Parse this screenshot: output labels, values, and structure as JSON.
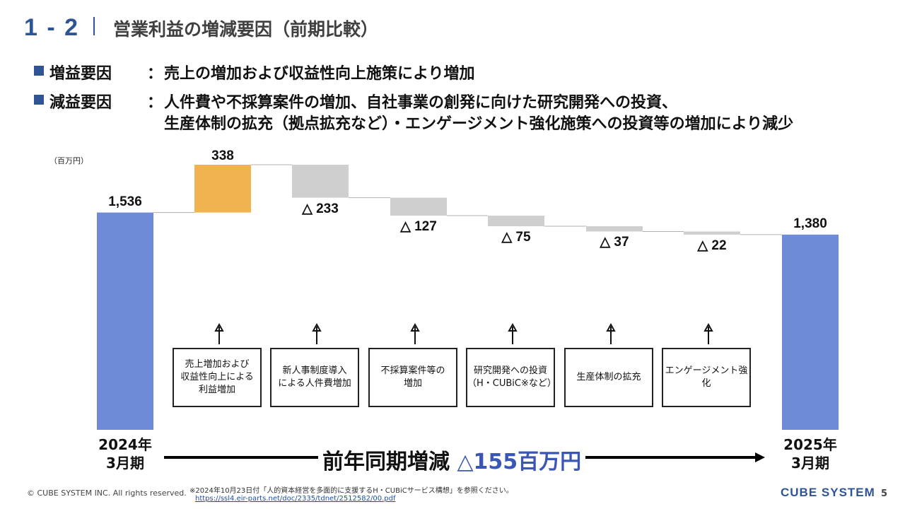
{
  "header": {
    "section_number": "1 - 2",
    "title": "営業利益の増減要因（前期比較）"
  },
  "bullets": [
    {
      "label": "増益要因",
      "separator": "：",
      "text": "売上の増加および収益性向上施策により増加"
    },
    {
      "label": "減益要因",
      "separator": "：",
      "text": "人件費や不採算案件の増加、自社事業の創発に向けた研究開発への投資、",
      "text2": "生産体制の拡充（拠点拡充など）・エンゲージメント強化施策への投資等の増加により減少"
    }
  ],
  "unit_label": "（百万円）",
  "chart_data": {
    "type": "bar",
    "subtype": "waterfall",
    "categories": [
      "2024年\n3月期",
      "増益",
      "人件費",
      "不採算",
      "研究開発",
      "生産体制",
      "エンゲージメント",
      "2025年\n3月期"
    ],
    "start": {
      "label": "2024年\n3月期",
      "value": 1536,
      "display": "1,536"
    },
    "end": {
      "label": "2025年\n3月期",
      "value": 1380,
      "display": "1,380"
    },
    "steps": [
      {
        "delta": 338,
        "display": "338",
        "note": "売上増加および\n収益性向上による\n利益増加"
      },
      {
        "delta": -233,
        "display": "△ 233",
        "note": "新人事制度導入\nによる人件費増加"
      },
      {
        "delta": -127,
        "display": "△ 127",
        "note": "不採算案件等の\n増加"
      },
      {
        "delta": -75,
        "display": "△ 75",
        "note": "研究開発への投資\n（H・CUBiC※など）"
      },
      {
        "delta": -37,
        "display": "△ 37",
        "note": "生産体制の拡充"
      },
      {
        "delta": -22,
        "display": "△ 22",
        "note": "エンゲージメント強化"
      }
    ],
    "ylim": [
      0,
      1900
    ],
    "colors": {
      "total": "#6f8ad6",
      "increase": "#f0b34f",
      "decrease": "#cfcfcf",
      "connector": "#b0b0b0"
    }
  },
  "summary": {
    "prefix": "前年同期増減 ",
    "value": "△155百万円"
  },
  "footer": {
    "copyright": "© CUBE SYSTEM INC. All rights reserved.",
    "note": "※2024年10月23日付「人的資本経営を多面的に支援するH・CUBiCサービス構想」を参照ください。",
    "link": "https://ssl4.eir-parts.net/doc/2335/tdnet/2512582/00.pdf",
    "brand": "CUBE SYSTEM",
    "page": "5"
  }
}
